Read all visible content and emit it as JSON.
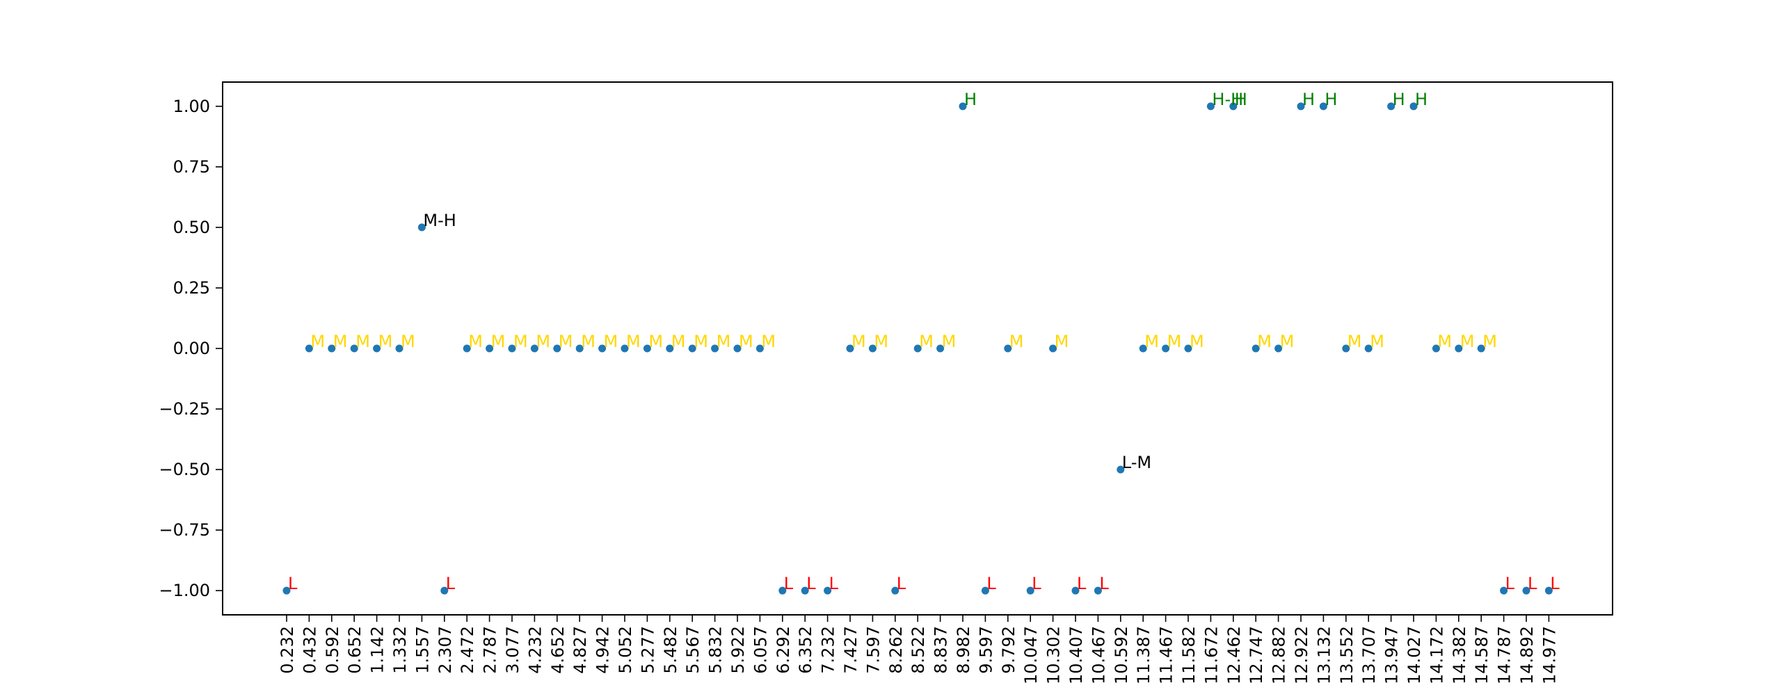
{
  "chart_data": {
    "type": "scatter",
    "xtick_labels": [
      "0.232",
      "0.432",
      "0.592",
      "0.652",
      "1.142",
      "1.332",
      "1.557",
      "2.307",
      "2.472",
      "2.787",
      "3.077",
      "4.232",
      "4.652",
      "4.827",
      "4.942",
      "5.052",
      "5.277",
      "5.482",
      "5.567",
      "5.832",
      "5.922",
      "6.057",
      "6.292",
      "6.352",
      "7.232",
      "7.427",
      "7.597",
      "8.262",
      "8.522",
      "8.837",
      "8.982",
      "9.597",
      "9.792",
      "10.047",
      "10.302",
      "10.407",
      "10.467",
      "10.592",
      "11.387",
      "11.467",
      "11.582",
      "11.672",
      "12.462",
      "12.747",
      "12.882",
      "12.922",
      "13.132",
      "13.552",
      "13.707",
      "13.947",
      "14.027",
      "14.172",
      "14.382",
      "14.587",
      "14.787",
      "14.892",
      "14.977"
    ],
    "y": [
      -1,
      0,
      0,
      0,
      0,
      0,
      0.5,
      -1,
      0,
      0,
      0,
      0,
      0,
      0,
      0,
      0,
      0,
      0,
      0,
      0,
      0,
      0,
      -1,
      -1,
      -1,
      0,
      0,
      -1,
      0,
      0,
      1,
      -1,
      0,
      -1,
      0,
      -1,
      -1,
      -0.5,
      0,
      0,
      0,
      1,
      1,
      0,
      0,
      1,
      1,
      0,
      0,
      1,
      1,
      0,
      0,
      0,
      -1,
      -1,
      -1
    ],
    "labels": [
      "L",
      "M",
      "M",
      "M",
      "M",
      "M",
      "M-H",
      "L",
      "M",
      "M",
      "M",
      "M",
      "M",
      "M",
      "M",
      "M",
      "M",
      "M",
      "M",
      "M",
      "M",
      "M",
      "L",
      "L",
      "L",
      "M",
      "M",
      "L",
      "M",
      "M",
      "H",
      "L",
      "M",
      "L",
      "M",
      "L",
      "L",
      "L-M",
      "M",
      "M",
      "M",
      "H-H",
      "H",
      "M",
      "M",
      "H",
      "H",
      "M",
      "M",
      "H",
      "H",
      "M",
      "M",
      "M",
      "L",
      "L",
      "L"
    ],
    "ylim": [
      -1.1,
      1.1
    ],
    "yticks": [
      1.0,
      0.75,
      0.5,
      0.25,
      0.0,
      -0.25,
      -0.5,
      -0.75,
      -1.0
    ],
    "ytick_labels": [
      "1.00",
      "0.75",
      "0.50",
      "0.25",
      "0.00",
      "−0.25",
      "−0.50",
      "−0.75",
      "−1.00"
    ],
    "label_colors": {
      "L": "#ff0000",
      "M": "#ffd700",
      "H": "#008000",
      "L-M": "#000000",
      "M-H": "#000000"
    },
    "marker_color": "#1f77b4",
    "grid": false,
    "xlabel": "",
    "ylabel": "",
    "title": ""
  }
}
